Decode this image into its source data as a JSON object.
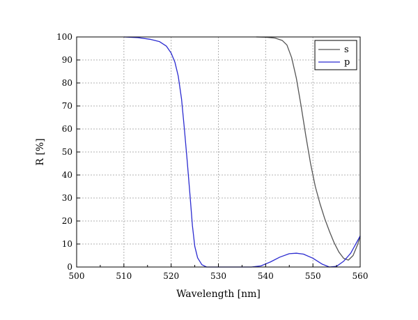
{
  "chart_data": {
    "type": "line",
    "title": "",
    "xlabel": "Wavelength [nm]",
    "ylabel": "R [%]",
    "xlim": [
      500,
      560
    ],
    "ylim": [
      0,
      100
    ],
    "xticks": [
      500,
      510,
      520,
      530,
      540,
      550,
      560
    ],
    "yticks": [
      0,
      10,
      20,
      30,
      40,
      50,
      60,
      70,
      80,
      90,
      100
    ],
    "grid": true,
    "legend_position": "top-right",
    "series": [
      {
        "name": "s",
        "color": "#555555",
        "points": [
          [
            538,
            100
          ],
          [
            540,
            99.9
          ],
          [
            542,
            99.5
          ],
          [
            543.5,
            98.5
          ],
          [
            544.5,
            96.5
          ],
          [
            545.5,
            91
          ],
          [
            546.5,
            82
          ],
          [
            547.5,
            70
          ],
          [
            548.5,
            57
          ],
          [
            549.5,
            45
          ],
          [
            550.5,
            35
          ],
          [
            551.5,
            27.5
          ],
          [
            552.5,
            21
          ],
          [
            553.5,
            15.5
          ],
          [
            554.5,
            10.5
          ],
          [
            555.5,
            6.5
          ],
          [
            556.5,
            3.8
          ],
          [
            557.5,
            3.0
          ],
          [
            558.5,
            5.0
          ],
          [
            559.5,
            10
          ],
          [
            560,
            13.5
          ]
        ]
      },
      {
        "name": "p",
        "color": "#2b2bd0",
        "points": [
          [
            510,
            100
          ],
          [
            513,
            99.7
          ],
          [
            515.5,
            99
          ],
          [
            517.5,
            98
          ],
          [
            519,
            96
          ],
          [
            520,
            93
          ],
          [
            520.8,
            89
          ],
          [
            521.5,
            83
          ],
          [
            522.2,
            73
          ],
          [
            522.8,
            60
          ],
          [
            523.4,
            46
          ],
          [
            524,
            31
          ],
          [
            524.5,
            18
          ],
          [
            525,
            9
          ],
          [
            525.6,
            4
          ],
          [
            526.5,
            1
          ],
          [
            527.5,
            0
          ],
          [
            537,
            0
          ],
          [
            539,
            0.5
          ],
          [
            541,
            2.2
          ],
          [
            543,
            4.3
          ],
          [
            545,
            5.8
          ],
          [
            546.5,
            6.0
          ],
          [
            548,
            5.6
          ],
          [
            550,
            3.8
          ],
          [
            552,
            1.2
          ],
          [
            553.5,
            0
          ],
          [
            555,
            0.3
          ],
          [
            556.5,
            2.5
          ],
          [
            558,
            6
          ],
          [
            560,
            13.5
          ]
        ]
      }
    ]
  }
}
